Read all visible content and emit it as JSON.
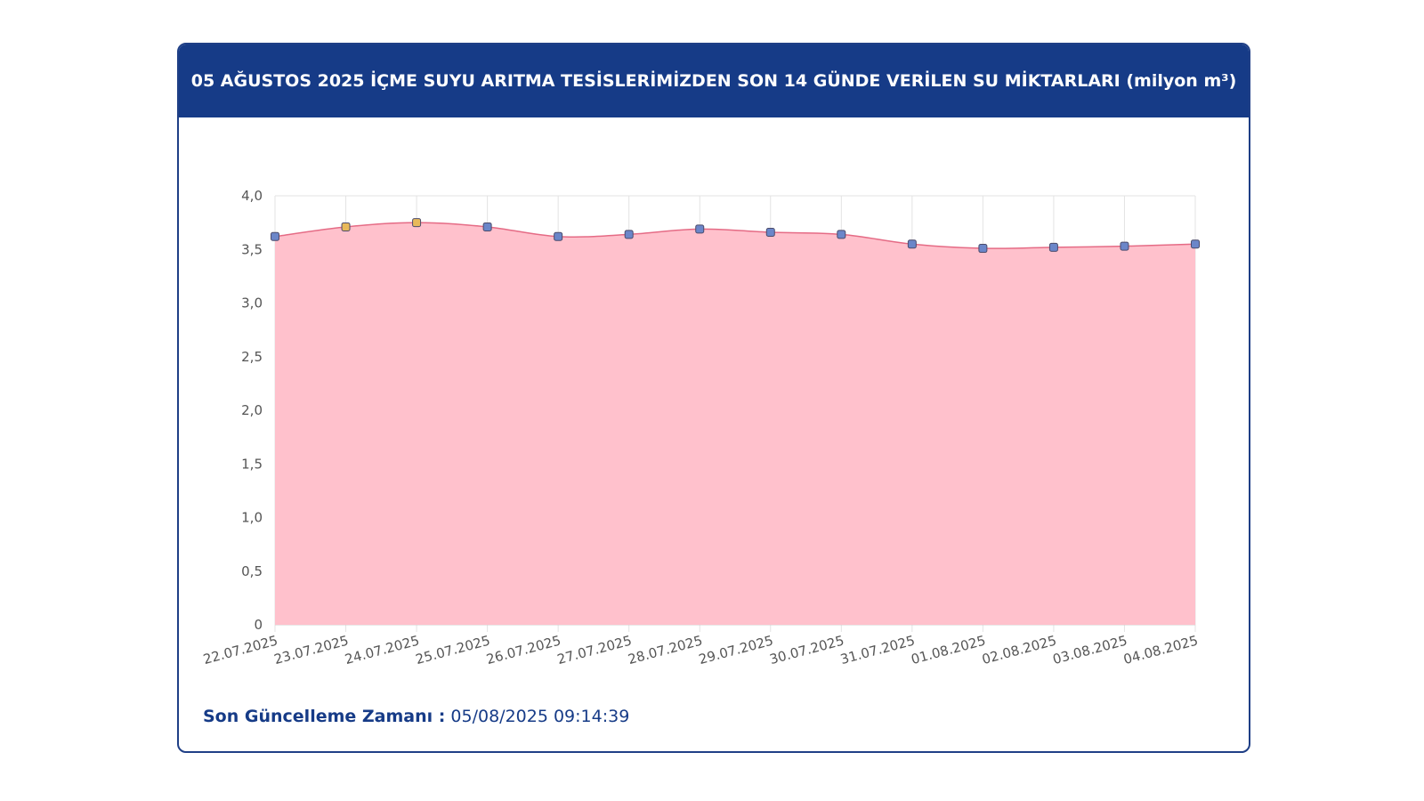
{
  "header": {
    "title": "05 AĞUSTOS 2025 İÇME SUYU ARITMA TESİSLERİMİZDEN SON 14 GÜNDE VERİLEN SU MİKTARLARI (milyon m³)"
  },
  "footer": {
    "label": "Son Güncelleme Zamanı :",
    "value": "05/08/2025 09:14:39"
  },
  "colors": {
    "header_bg": "#163b87",
    "area_fill": "#ffc1cc",
    "line": "#e56b85",
    "marker_fill": "#6b86c9",
    "marker_fill_highlight": "#e8b95a"
  },
  "chart_data": {
    "type": "area",
    "x": [
      "22.07.2025",
      "23.07.2025",
      "24.07.2025",
      "25.07.2025",
      "26.07.2025",
      "27.07.2025",
      "28.07.2025",
      "29.07.2025",
      "30.07.2025",
      "31.07.2025",
      "01.08.2025",
      "02.08.2025",
      "03.08.2025",
      "04.08.2025"
    ],
    "series": [
      {
        "values": [
          3.62,
          3.71,
          3.75,
          3.71,
          3.62,
          3.64,
          3.69,
          3.66,
          3.64,
          3.55,
          3.51,
          3.52,
          3.53,
          3.55
        ]
      }
    ],
    "yticks": [
      "0",
      "0,5",
      "1,0",
      "1,5",
      "2,0",
      "2,5",
      "3,0",
      "3,5",
      "4,0"
    ],
    "ylim": [
      0,
      4.0
    ],
    "grid": true,
    "legend": "none"
  }
}
